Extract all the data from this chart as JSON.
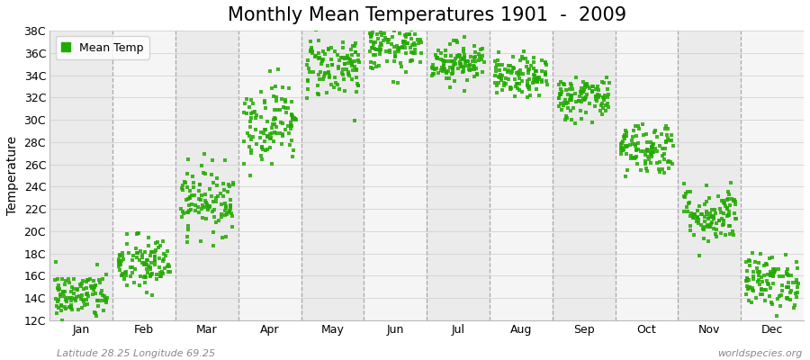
{
  "title": "Monthly Mean Temperatures 1901  -  2009",
  "ylabel": "Temperature",
  "bottom_left": "Latitude 28.25 Longitude 69.25",
  "bottom_right": "worldspecies.org",
  "legend_label": "Mean Temp",
  "dot_color": "#22aa00",
  "bg_color": "#ffffff",
  "band_colors": [
    "#ebebeb",
    "#f5f5f5"
  ],
  "months": [
    "Jan",
    "Feb",
    "Mar",
    "Apr",
    "May",
    "Jun",
    "Jul",
    "Aug",
    "Sep",
    "Oct",
    "Nov",
    "Dec"
  ],
  "ytick_labels": [
    "12C",
    "14C",
    "16C",
    "18C",
    "20C",
    "22C",
    "24C",
    "26C",
    "28C",
    "30C",
    "32C",
    "34C",
    "36C",
    "38C"
  ],
  "ytick_values": [
    12,
    14,
    16,
    18,
    20,
    22,
    24,
    26,
    28,
    30,
    32,
    34,
    36,
    38
  ],
  "ylim": [
    12,
    38
  ],
  "monthly_means": [
    14.2,
    17.0,
    22.8,
    29.8,
    34.8,
    36.5,
    35.2,
    33.8,
    32.0,
    27.5,
    21.5,
    15.5
  ],
  "monthly_stds": [
    1.1,
    1.3,
    1.5,
    1.8,
    1.4,
    1.1,
    0.9,
    0.9,
    1.0,
    1.2,
    1.3,
    1.2
  ],
  "n_years": 109,
  "title_fontsize": 15,
  "axis_fontsize": 10,
  "tick_fontsize": 9,
  "marker_size": 3.5
}
